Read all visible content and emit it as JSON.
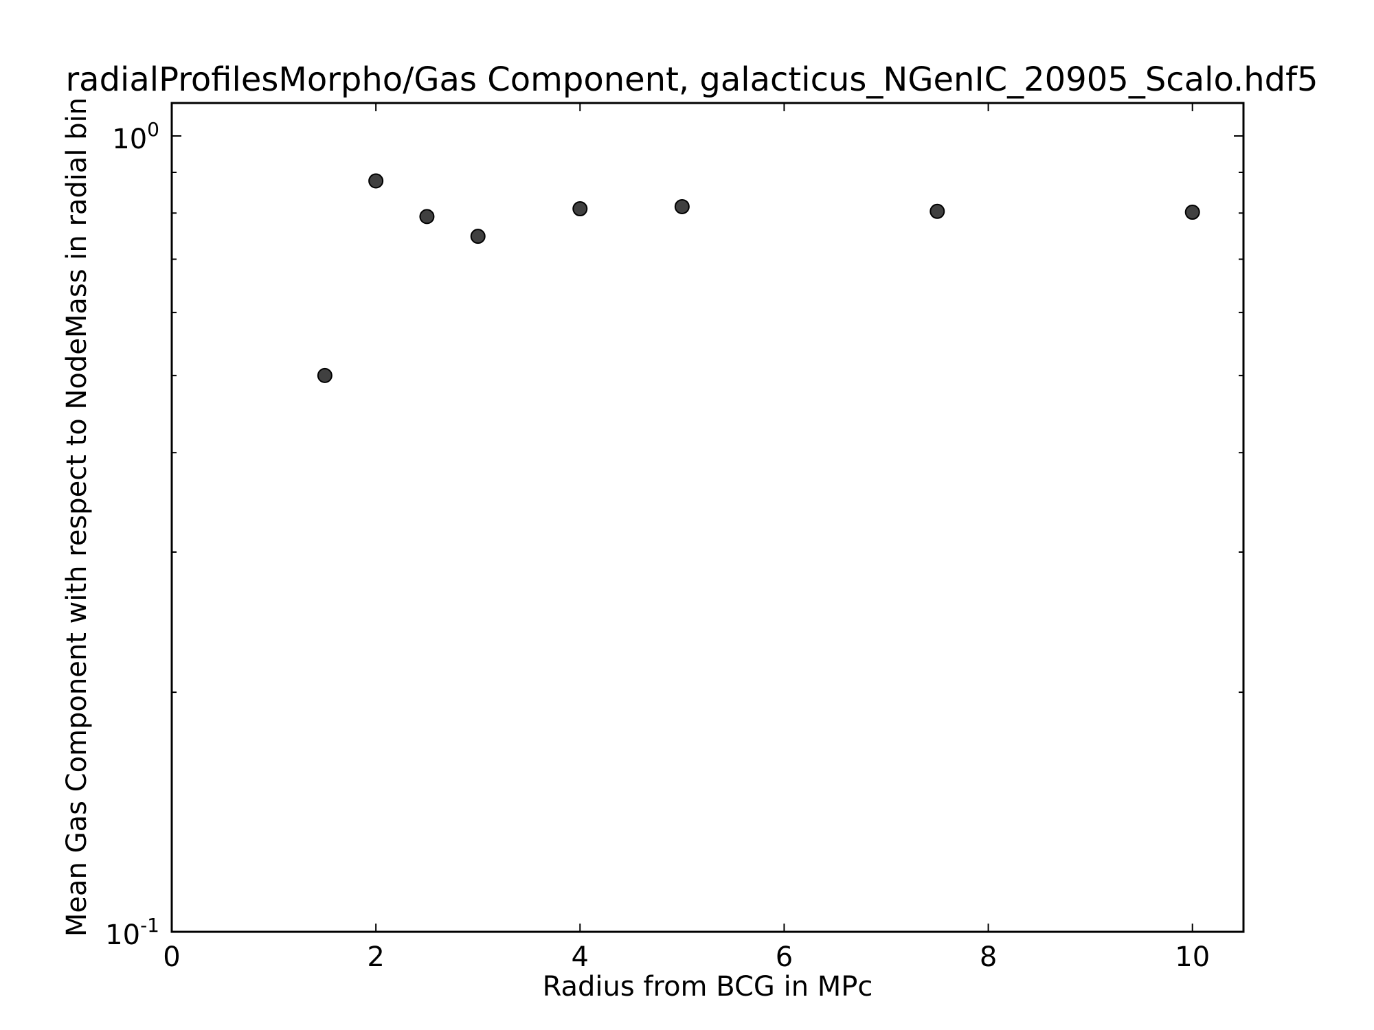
{
  "chart_data": {
    "type": "scatter",
    "title": "radialProfilesMorpho/Gas Component, galacticus_NGenIC_20905_Scalo.hdf5",
    "xlabel": "Radius from BCG in MPc",
    "ylabel": "Mean Gas Component with respect to NodeMass in radial bin",
    "xlim": [
      0,
      10.5
    ],
    "ylim": [
      0.1,
      1.1
    ],
    "yscale": "log",
    "grid": false,
    "x_ticks": [
      0,
      2,
      4,
      6,
      8,
      10
    ],
    "x_tick_labels": [
      "0",
      "2",
      "4",
      "6",
      "8",
      "10"
    ],
    "y_ticks": [
      {
        "value": 1.0,
        "base": "10",
        "exp": "0"
      },
      {
        "value": 0.1,
        "base": "10",
        "exp": "-1"
      }
    ],
    "series": [
      {
        "x": [
          1.5,
          2.0,
          2.5,
          3.0,
          4.0,
          5.0,
          7.5,
          10.0
        ],
        "y": [
          0.5,
          0.878,
          0.792,
          0.748,
          0.81,
          0.815,
          0.804,
          0.802
        ],
        "marker": "circle",
        "color": "#404040",
        "edgecolor": "#000000"
      }
    ]
  }
}
